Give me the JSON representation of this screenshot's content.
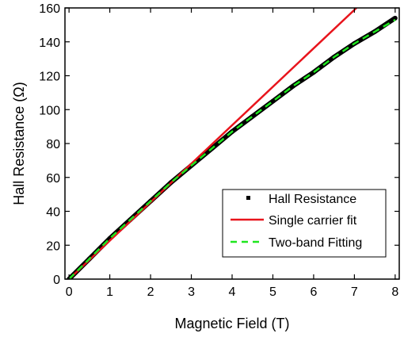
{
  "chart_data": {
    "type": "line",
    "xlabel": "Magnetic Field (T)",
    "ylabel": "Hall Resistance (Ω)",
    "xlim": [
      -0.1,
      8.1
    ],
    "ylim": [
      0,
      160
    ],
    "xticks": [
      0,
      1,
      2,
      3,
      4,
      5,
      6,
      7,
      8
    ],
    "yticks": [
      0,
      20,
      40,
      60,
      80,
      100,
      120,
      140,
      160
    ],
    "grid": false,
    "legend_position": "bottom-right",
    "series": [
      {
        "name": "Hall Resistance",
        "style": "dotted-thick",
        "color": "#000000",
        "x": [
          0,
          0.5,
          1,
          1.5,
          2,
          2.5,
          3,
          3.5,
          4,
          4.5,
          5,
          5.5,
          6,
          6.5,
          7,
          7.5,
          8
        ],
        "y": [
          0,
          12,
          24,
          35,
          46,
          57,
          67,
          77,
          87,
          96,
          105,
          114,
          122,
          131,
          139,
          146,
          154
        ]
      },
      {
        "name": "Single carrier fit",
        "style": "solid",
        "color": "#e8141c",
        "x": [
          0,
          7.05
        ],
        "y": [
          0,
          160
        ]
      },
      {
        "name": "Two-band Fitting",
        "style": "dashed",
        "color": "#1ee61e",
        "x": [
          0,
          0.5,
          1,
          1.5,
          2,
          2.5,
          3,
          3.5,
          4,
          4.5,
          5,
          5.5,
          6,
          6.5,
          7,
          7.5,
          8
        ],
        "y": [
          0,
          12,
          24,
          35,
          46,
          57,
          67,
          77,
          87,
          96,
          105,
          114,
          122,
          131,
          139,
          146,
          153
        ]
      }
    ]
  }
}
